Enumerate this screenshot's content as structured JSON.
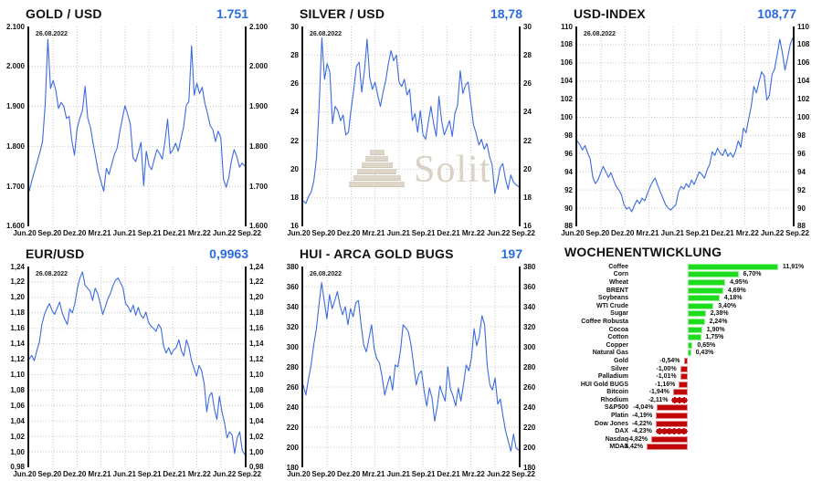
{
  "accent_blue": "#2b6bde",
  "grid_color": "#c9c9c9",
  "watermark": {
    "text": "Solit"
  },
  "chart_data": [
    {
      "type": "line",
      "title": "GOLD / USD",
      "current_value": "1.751",
      "date_label": "26.08.2022",
      "line_color": "#3b6be0",
      "ylim": [
        1600,
        2100
      ],
      "y_ticks": [
        "2.100",
        "2.000",
        "1.900",
        "1.800",
        "1.700",
        "1.600"
      ],
      "x_ticks": [
        "Jun.20",
        "Sep.20",
        "Dez.20",
        "Mrz.21",
        "Jun.21",
        "Sep.21",
        "Dez.21",
        "Mrz.22",
        "Jun.22",
        "Sep.22"
      ],
      "values": [
        1688,
        1715,
        1738,
        1762,
        1785,
        1812,
        1905,
        2068,
        1945,
        1965,
        1940,
        1895,
        1910,
        1900,
        1870,
        1875,
        1815,
        1778,
        1845,
        1870,
        1890,
        1950,
        1870,
        1848,
        1808,
        1772,
        1735,
        1712,
        1688,
        1745,
        1730,
        1755,
        1780,
        1795,
        1835,
        1870,
        1902,
        1880,
        1855,
        1772,
        1762,
        1785,
        1810,
        1702,
        1788,
        1752,
        1742,
        1768,
        1792,
        1782,
        1768,
        1812,
        1868,
        1782,
        1792,
        1808,
        1788,
        1818,
        1848,
        1902,
        1912,
        2052,
        1928,
        1958,
        1932,
        1948,
        1908,
        1882,
        1852,
        1842,
        1812,
        1838,
        1822,
        1718,
        1698,
        1722,
        1765,
        1792,
        1775,
        1748,
        1758,
        1751
      ]
    },
    {
      "type": "line",
      "title": "SILVER / USD",
      "current_value": "18,78",
      "date_label": "26.08.2022",
      "line_color": "#3b6be0",
      "ylim": [
        16,
        30
      ],
      "y_ticks": [
        "30",
        "28",
        "26",
        "24",
        "22",
        "20",
        "18",
        "16"
      ],
      "x_ticks": [
        "Jun.20",
        "Sep.20",
        "Dez.20",
        "Mrz.21",
        "Jun.21",
        "Sep.21",
        "Dez.21",
        "Mrz.22",
        "Jun.22",
        "Sep.22"
      ],
      "values": [
        17.8,
        17.6,
        18.1,
        18.4,
        19.2,
        20.8,
        24.5,
        29.2,
        26.3,
        27.4,
        26.8,
        23.2,
        24.4,
        24.1,
        23.4,
        23.8,
        22.4,
        22.6,
        24.2,
        25.6,
        27.2,
        27.5,
        25.4,
        26.9,
        29.1,
        26.4,
        25.6,
        26.1,
        25.2,
        24.4,
        25.4,
        26.2,
        27.4,
        28.3,
        27.6,
        28.0,
        26.1,
        25.8,
        26.3,
        25.2,
        25.6,
        23.4,
        23.9,
        22.6,
        24.1,
        22.4,
        22.1,
        23.3,
        24.4,
        23.2,
        22.3,
        25.1,
        23.4,
        22.4,
        22.9,
        23.4,
        22.3,
        23.9,
        24.5,
        26.9,
        25.3,
        25.9,
        26.1,
        24.6,
        23.1,
        22.5,
        21.7,
        22.1,
        21.4,
        21.8,
        20.9,
        20.3,
        18.3,
        19.1,
        20.1,
        20.4,
        19.3,
        18.6,
        19.6,
        19.1,
        18.9,
        18.78
      ]
    },
    {
      "type": "line",
      "title": "USD-INDEX",
      "current_value": "108,77",
      "date_label": "26.08.2022",
      "line_color": "#3b6be0",
      "ylim": [
        88,
        110
      ],
      "y_ticks": [
        "110",
        "108",
        "106",
        "104",
        "102",
        "100",
        "98",
        "96",
        "94",
        "92",
        "90",
        "88"
      ],
      "x_ticks": [
        "Jun.20",
        "Sep.20",
        "Dez.20",
        "Mrz.21",
        "Jun.21",
        "Sep.21",
        "Dez.21",
        "Mrz.22",
        "Jun.22",
        "Sep.22"
      ],
      "values": [
        97.4,
        97.0,
        96.4,
        96.9,
        96.1,
        95.4,
        93.4,
        92.7,
        93.1,
        93.9,
        94.6,
        94.0,
        93.4,
        93.9,
        93.1,
        92.4,
        92.0,
        91.5,
        90.4,
        89.9,
        90.1,
        89.6,
        90.3,
        90.9,
        90.5,
        91.1,
        90.8,
        91.6,
        92.3,
        92.9,
        93.3,
        92.5,
        91.8,
        91.1,
        90.4,
        90.0,
        89.8,
        90.1,
        90.4,
        91.8,
        92.4,
        92.1,
        92.7,
        92.3,
        93.1,
        92.6,
        93.3,
        94.0,
        93.7,
        93.3,
        94.2,
        94.8,
        96.2,
        95.8,
        96.6,
        96.1,
        95.8,
        96.5,
        95.7,
        96.1,
        95.6,
        96.3,
        97.4,
        96.7,
        98.8,
        98.3,
        99.8,
        101.2,
        103.4,
        102.7,
        103.9,
        105.0,
        104.6,
        101.9,
        102.4,
        104.7,
        105.3,
        106.9,
        108.6,
        107.1,
        105.2,
        106.5,
        108.0,
        108.77
      ]
    },
    {
      "type": "line",
      "title": "EUR/USD",
      "current_value": "0,9963",
      "date_label": "26.08.2022",
      "line_color": "#3b6be0",
      "ylim": [
        0.98,
        1.24
      ],
      "y_ticks": [
        "1,24",
        "1,22",
        "1,20",
        "1,18",
        "1,16",
        "1,14",
        "1,12",
        "1,10",
        "1,08",
        "1,06",
        "1,04",
        "1,02",
        "1,00",
        "0,98"
      ],
      "x_ticks": [
        "Jun.20",
        "Sep.20",
        "Dez.20",
        "Mrz.21",
        "Jun.21",
        "Sep.21",
        "Dez.21",
        "Mrz.22",
        "Jun.22",
        "Sep.22"
      ],
      "values": [
        1.12,
        1.125,
        1.118,
        1.131,
        1.142,
        1.165,
        1.178,
        1.186,
        1.192,
        1.183,
        1.178,
        1.186,
        1.194,
        1.18,
        1.172,
        1.165,
        1.185,
        1.18,
        1.192,
        1.212,
        1.225,
        1.233,
        1.216,
        1.212,
        1.208,
        1.196,
        1.212,
        1.205,
        1.192,
        1.178,
        1.188,
        1.198,
        1.205,
        1.215,
        1.222,
        1.225,
        1.219,
        1.212,
        1.192,
        1.188,
        1.181,
        1.19,
        1.177,
        1.187,
        1.177,
        1.173,
        1.181,
        1.168,
        1.163,
        1.16,
        1.156,
        1.165,
        1.16,
        1.137,
        1.128,
        1.135,
        1.126,
        1.132,
        1.135,
        1.145,
        1.131,
        1.124,
        1.145,
        1.135,
        1.118,
        1.108,
        1.098,
        1.112,
        1.105,
        1.088,
        1.052,
        1.072,
        1.077,
        1.056,
        1.042,
        1.072,
        1.052,
        1.038,
        1.018,
        1.026,
        1.022,
        0.998,
        1.018,
        1.026,
        1.002,
        0.9963
      ]
    },
    {
      "type": "line",
      "title": "HUI - ARCA GOLD BUGS",
      "current_value": "197",
      "date_label": "26.08.2022",
      "line_color": "#3b6be0",
      "ylim": [
        180,
        380
      ],
      "y_ticks": [
        "380",
        "360",
        "340",
        "320",
        "300",
        "280",
        "260",
        "240",
        "220",
        "200",
        "180"
      ],
      "x_ticks": [
        "Jun.20",
        "Sep.20",
        "Dez.20",
        "Mrz.21",
        "Jun.21",
        "Sep.21",
        "Dez.21",
        "Mrz.22",
        "Jun.22",
        "Sep.22"
      ],
      "values": [
        262,
        252,
        268,
        282,
        302,
        318,
        342,
        364,
        345,
        328,
        352,
        338,
        346,
        355,
        341,
        332,
        340,
        322,
        338,
        330,
        344,
        346,
        322,
        302,
        295,
        308,
        322,
        298,
        288,
        284,
        270,
        252,
        262,
        271,
        257,
        282,
        280,
        296,
        322,
        319,
        315,
        302,
        282,
        262,
        273,
        276,
        256,
        241,
        259,
        249,
        226,
        241,
        261,
        253,
        246,
        280,
        258,
        251,
        241,
        259,
        246,
        263,
        282,
        276,
        289,
        318,
        301,
        311,
        331,
        322,
        281,
        262,
        257,
        269,
        243,
        248,
        231,
        216,
        206,
        196,
        213,
        199,
        197
      ]
    },
    {
      "type": "bar",
      "title": "WOCHENENTWICKLUNG",
      "positive_color": "#1edc1e",
      "negative_color": "#c00606",
      "items": [
        {
          "label": "Coffee",
          "value": 11.91,
          "display": "11,91%"
        },
        {
          "label": "Corn",
          "value": 6.7,
          "display": "6,70%"
        },
        {
          "label": "Wheat",
          "value": 4.95,
          "display": "4,95%"
        },
        {
          "label": "BRENT",
          "value": 4.69,
          "display": "4,69%"
        },
        {
          "label": "Soybeans",
          "value": 4.18,
          "display": "4,18%"
        },
        {
          "label": "WTI Crude",
          "value": 3.4,
          "display": "3,40%"
        },
        {
          "label": "Sugar",
          "value": 2.38,
          "display": "2,38%"
        },
        {
          "label": "Coffee Robusta",
          "value": 2.24,
          "display": "2,24%"
        },
        {
          "label": "Cocoa",
          "value": 1.9,
          "display": "1,90%"
        },
        {
          "label": "Cotton",
          "value": 1.75,
          "display": "1,75%"
        },
        {
          "label": "Copper",
          "value": 0.65,
          "display": "0,65%"
        },
        {
          "label": "Natural Gas",
          "value": 0.43,
          "display": "0,43%"
        },
        {
          "label": "Gold",
          "value": -0.54,
          "display": "-0,54%"
        },
        {
          "label": "Silver",
          "value": -1.0,
          "display": "-1,00%"
        },
        {
          "label": "Palladium",
          "value": -1.01,
          "display": "-1,01%"
        },
        {
          "label": "HUI Gold BUGS",
          "value": -1.16,
          "display": "-1,16%"
        },
        {
          "label": "Bitcoin",
          "value": -1.94,
          "display": "-1,94%"
        },
        {
          "label": "Rhodium",
          "value": -2.11,
          "display": "-2,11%",
          "dashed_border": true
        },
        {
          "label": "S&P500",
          "value": -4.04,
          "display": "-4,04%"
        },
        {
          "label": "Platin",
          "value": -4.19,
          "display": "-4,19%"
        },
        {
          "label": "Dow Jones",
          "value": -4.22,
          "display": "-4,22%"
        },
        {
          "label": "DAX",
          "value": -4.23,
          "display": "-4,23%",
          "dashed_border": true
        },
        {
          "label": "Nasdaq",
          "value": -4.82,
          "display": "-4,82%"
        },
        {
          "label": "MDAX",
          "value": -5.42,
          "display": "-5,42%"
        }
      ]
    }
  ]
}
